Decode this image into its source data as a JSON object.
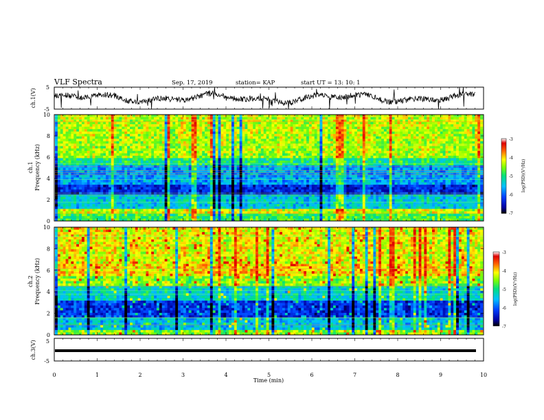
{
  "header": {
    "title": "VLF Spectra",
    "date": "Sep. 17, 2019",
    "station": "station= KAP",
    "start": "start  UT =   13: 10: 1"
  },
  "chart_data": [
    {
      "type": "line",
      "ylabel": "ch.1(V)",
      "ylim": [
        -5,
        5
      ],
      "yticks": [
        "5",
        "-5"
      ],
      "xlim": [
        0,
        10
      ]
    },
    {
      "type": "heatmap",
      "ylabel_line1": "ch.1",
      "ylabel_line2": "Frequency  (kHz)",
      "ylim": [
        0,
        10
      ],
      "yticks": [
        "0",
        "2",
        "4",
        "6",
        "8",
        "10"
      ],
      "colorbar": {
        "label": "log(PSD)(V²/Hz)",
        "range": [
          -7,
          -3
        ],
        "ticks": [
          "-3",
          "-4",
          "-5",
          "-6",
          "-7"
        ]
      }
    },
    {
      "type": "heatmap",
      "ylabel_line1": "ch.2",
      "ylabel_line2": "Frequency  (kHz)",
      "ylim": [
        0,
        10
      ],
      "yticks": [
        "0",
        "2",
        "4",
        "6",
        "8",
        "10"
      ],
      "colorbar": {
        "label": "log(PSD)(V²/Hz)",
        "range": [
          -7,
          -3
        ],
        "ticks": [
          "-3",
          "-4",
          "-5",
          "-6",
          "-7"
        ]
      }
    },
    {
      "type": "line",
      "ylabel": "ch.3(V)",
      "ylim": [
        -5,
        5
      ],
      "yticks": [
        "5",
        "-5"
      ],
      "xlim": [
        0,
        10
      ],
      "xlabel": "Time  (min)",
      "xticks": [
        "0",
        "1",
        "2",
        "3",
        "4",
        "5",
        "6",
        "7",
        "8",
        "9",
        "10"
      ]
    }
  ]
}
